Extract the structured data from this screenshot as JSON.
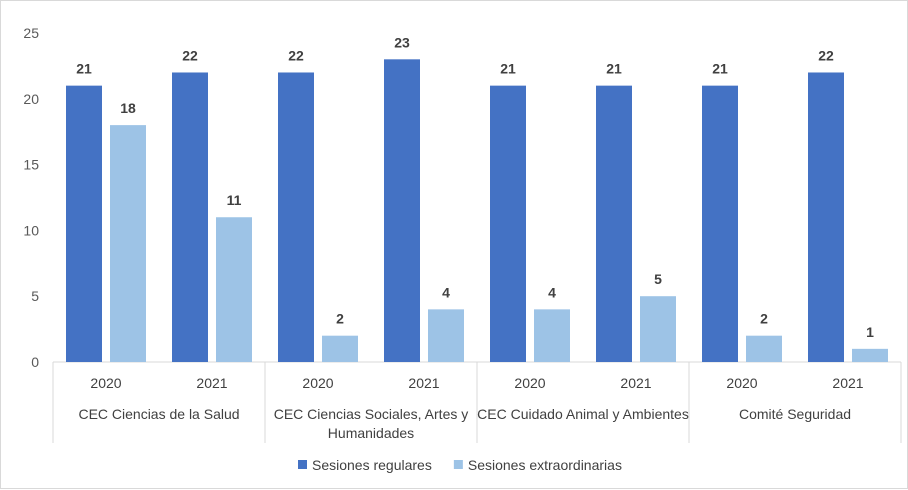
{
  "chart_data": {
    "type": "bar",
    "title": "",
    "xlabel": "",
    "ylabel": "",
    "ylim": [
      0,
      25
    ],
    "yticks": [
      0,
      5,
      10,
      15,
      20,
      25
    ],
    "grid": false,
    "legend_position": "bottom",
    "groups": [
      {
        "label": "CEC Ciencias de la Salud",
        "categories": [
          "2020",
          "2021"
        ]
      },
      {
        "label": "CEC Ciencias Sociales, Artes y Humanidades",
        "categories": [
          "2020",
          "2021"
        ]
      },
      {
        "label": "CEC Cuidado Animal y Ambientes",
        "categories": [
          "2020",
          "2021"
        ]
      },
      {
        "label": "Comité Seguridad",
        "categories": [
          "2020",
          "2021"
        ]
      }
    ],
    "categories": [
      "2020",
      "2021",
      "2020",
      "2021",
      "2020",
      "2021",
      "2020",
      "2021"
    ],
    "series": [
      {
        "name": "Sesiones regulares",
        "color": "#4472c4",
        "values": [
          21,
          22,
          22,
          23,
          21,
          21,
          21,
          22
        ]
      },
      {
        "name": "Sesiones extraordinarias",
        "color": "#9dc3e6",
        "values": [
          18,
          11,
          2,
          4,
          4,
          5,
          2,
          1
        ]
      }
    ]
  }
}
